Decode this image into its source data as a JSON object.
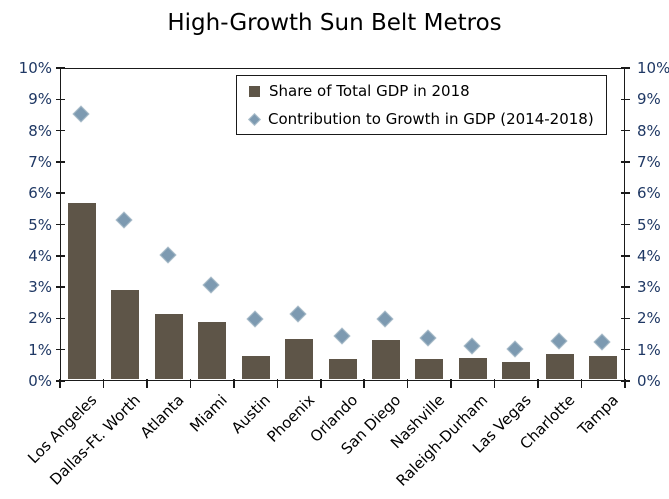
{
  "title": "High-Growth Sun Belt Metros",
  "colors": {
    "bar": "#5e5548",
    "marker_fill": "#7d9ab1",
    "marker_border": "#a9bcc9",
    "axis_tick_label": "#1f3864",
    "category_label": "#000000",
    "axis_line": "#1a1a1a"
  },
  "chart_data": {
    "type": "bar",
    "title": "High-Growth Sun Belt Metros",
    "categories": [
      "Los Angeles",
      "Dallas-Ft. Worth",
      "Atlanta",
      "Miami",
      "Austin",
      "Phoenix",
      "Orlando",
      "San Diego",
      "Nashville",
      "Raleigh-Durham",
      "Las Vegas",
      "Charlotte",
      "Tampa"
    ],
    "series": [
      {
        "name": "Share of Total GDP in 2018",
        "type": "bar",
        "values": [
          5.7,
          2.9,
          2.15,
          1.9,
          0.8,
          1.35,
          0.7,
          1.3,
          0.7,
          0.75,
          0.6,
          0.85,
          0.8
        ]
      },
      {
        "name": "Contribution to Growth in GDP (2014-2018)",
        "type": "scatter",
        "marker": "diamond",
        "values": [
          8.5,
          5.1,
          4.0,
          3.05,
          1.95,
          2.1,
          1.4,
          1.95,
          1.35,
          1.1,
          1.0,
          1.25,
          1.2
        ]
      }
    ],
    "xlabel": "",
    "ylabel": "",
    "ylim": [
      0,
      10
    ],
    "ytick_step": 1,
    "ytick_labels": [
      "0%",
      "1%",
      "2%",
      "3%",
      "4%",
      "5%",
      "6%",
      "7%",
      "8%",
      "9%",
      "10%"
    ],
    "secondary_y_axis": "mirror of primary, 0%-10%",
    "grid": false,
    "legend_position": "top-center-inside",
    "category_label_rotation_deg": -45
  }
}
